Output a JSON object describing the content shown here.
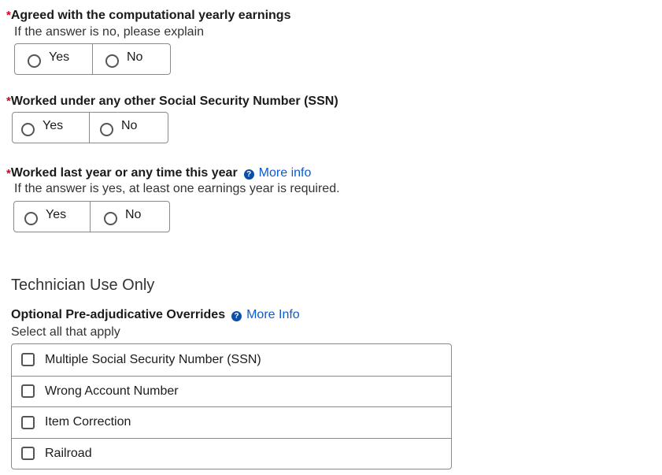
{
  "questions": [
    {
      "required_mark": "*",
      "label": "Agreed with the computational yearly earnings",
      "hint": "If the answer is no, please explain",
      "options": [
        "Yes",
        "No"
      ]
    },
    {
      "required_mark": "*",
      "label": "Worked under any other Social Security Number (SSN)",
      "options": [
        "Yes",
        "No"
      ]
    },
    {
      "required_mark": "*",
      "label": "Worked last year or any time this year",
      "more_info": "More info",
      "hint": "If the answer is yes, at least one earnings year is required.",
      "options": [
        "Yes",
        "No"
      ]
    }
  ],
  "technician": {
    "heading": "Technician Use Only",
    "overrides_label": "Optional Pre-adjudicative Overrides",
    "more_info": "More Info",
    "hint": "Select all that apply",
    "checkboxes": [
      "Multiple Social Security Number (SSN)",
      "Wrong Account Number",
      "Item Correction",
      "Railroad"
    ]
  },
  "colors": {
    "required": "#d0021b",
    "link": "#0b5bd3"
  }
}
